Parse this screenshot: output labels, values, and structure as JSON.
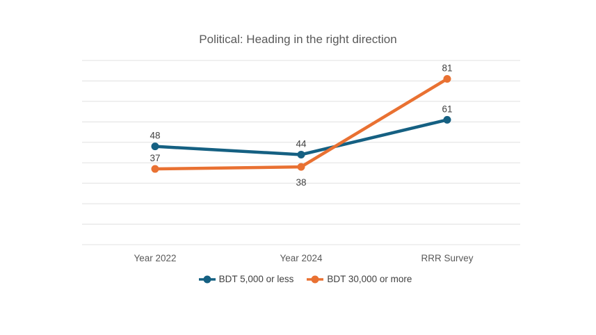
{
  "chart_data": {
    "type": "line",
    "title": "Political: Heading in the right direction",
    "categories": [
      "Year 2022",
      "Year 2024",
      "RRR Survey"
    ],
    "series": [
      {
        "name": "BDT 5,000 or less",
        "color": "#156082",
        "values": [
          48,
          44,
          61
        ],
        "data_label_positions": [
          "above",
          "above",
          "above"
        ]
      },
      {
        "name": "BDT 30,000 or more",
        "color": "#E97132",
        "values": [
          37,
          38,
          81
        ],
        "data_label_positions": [
          "above",
          "below",
          "above"
        ]
      }
    ],
    "ylim": [
      0,
      90
    ],
    "y_gridline_step": 10,
    "grid": "horizontal",
    "y_axis_labels_visible": false,
    "data_labels_visible": true,
    "legend_position": "bottom"
  },
  "colors": {
    "title_text": "#595959",
    "axis_label_text": "#595959",
    "data_label_text": "#404040",
    "gridline": "#E0E0E0",
    "background": "#FFFFFF"
  }
}
